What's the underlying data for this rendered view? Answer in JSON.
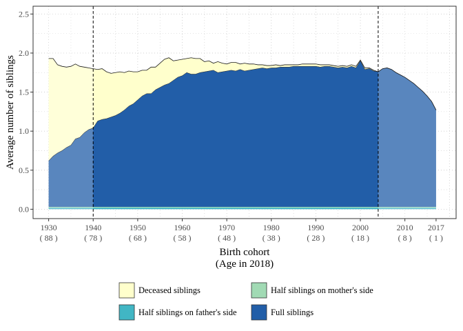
{
  "chart_data": {
    "type": "area",
    "title": "",
    "xlabel": "Birth cohort",
    "xlabel_sub": "(Age in 2018)",
    "ylabel": "Average number of siblings",
    "xlim": [
      1926.5,
      2021.5
    ],
    "ylim": [
      -0.12,
      2.6
    ],
    "grid": true,
    "legend_position": "bottom",
    "x_ticks": [
      {
        "value": 1930,
        "label": "1930",
        "sublabel": "( 88 )"
      },
      {
        "value": 1940,
        "label": "1940",
        "sublabel": "( 78 )"
      },
      {
        "value": 1950,
        "label": "1950",
        "sublabel": "( 68 )"
      },
      {
        "value": 1960,
        "label": "1960",
        "sublabel": "( 58 )"
      },
      {
        "value": 1970,
        "label": "1970",
        "sublabel": "( 48 )"
      },
      {
        "value": 1980,
        "label": "1980",
        "sublabel": "( 38 )"
      },
      {
        "value": 1990,
        "label": "1990",
        "sublabel": "( 28 )"
      },
      {
        "value": 2000,
        "label": "2000",
        "sublabel": "( 18 )"
      },
      {
        "value": 2010,
        "label": "2010",
        "sublabel": "( 8 )"
      },
      {
        "value": 2017,
        "label": "2017",
        "sublabel": "( 1 )"
      }
    ],
    "y_ticks": [
      {
        "value": 0.0,
        "label": "0.0"
      },
      {
        "value": 0.5,
        "label": "0.5"
      },
      {
        "value": 1.0,
        "label": "1.0"
      },
      {
        "value": 1.5,
        "label": "1.5"
      },
      {
        "value": 2.0,
        "label": "2.0"
      },
      {
        "value": 2.5,
        "label": "2.5"
      }
    ],
    "vlines": [
      1940,
      2004
    ],
    "shaded_ranges": [
      [
        1930,
        1940
      ],
      [
        2004,
        2017
      ]
    ],
    "x": [
      1930,
      1931,
      1932,
      1933,
      1934,
      1935,
      1936,
      1937,
      1938,
      1939,
      1940,
      1941,
      1942,
      1943,
      1944,
      1945,
      1946,
      1947,
      1948,
      1949,
      1950,
      1951,
      1952,
      1953,
      1954,
      1955,
      1956,
      1957,
      1958,
      1959,
      1960,
      1961,
      1962,
      1963,
      1964,
      1965,
      1966,
      1967,
      1968,
      1969,
      1970,
      1971,
      1972,
      1973,
      1974,
      1975,
      1976,
      1977,
      1978,
      1979,
      1980,
      1981,
      1982,
      1983,
      1984,
      1985,
      1986,
      1987,
      1988,
      1989,
      1990,
      1991,
      1992,
      1993,
      1994,
      1995,
      1996,
      1997,
      1998,
      1999,
      2000,
      2001,
      2002,
      2003,
      2004,
      2005,
      2006,
      2007,
      2008,
      2009,
      2010,
      2011,
      2012,
      2013,
      2014,
      2015,
      2016,
      2017
    ],
    "series": [
      {
        "name": "Half siblings on father's side",
        "color": "#41b6c4",
        "values": [
          0.02,
          0.02,
          0.02,
          0.02,
          0.02,
          0.02,
          0.02,
          0.02,
          0.02,
          0.02,
          0.02,
          0.02,
          0.02,
          0.02,
          0.02,
          0.02,
          0.02,
          0.02,
          0.02,
          0.02,
          0.02,
          0.02,
          0.02,
          0.02,
          0.02,
          0.02,
          0.02,
          0.02,
          0.02,
          0.02,
          0.02,
          0.02,
          0.02,
          0.02,
          0.02,
          0.02,
          0.02,
          0.02,
          0.02,
          0.02,
          0.02,
          0.02,
          0.02,
          0.02,
          0.02,
          0.02,
          0.02,
          0.02,
          0.02,
          0.02,
          0.02,
          0.02,
          0.02,
          0.02,
          0.02,
          0.02,
          0.02,
          0.02,
          0.02,
          0.02,
          0.02,
          0.02,
          0.02,
          0.02,
          0.02,
          0.02,
          0.02,
          0.02,
          0.02,
          0.02,
          0.02,
          0.02,
          0.02,
          0.02,
          0.02,
          0.02,
          0.02,
          0.02,
          0.02,
          0.02,
          0.02,
          0.02,
          0.02,
          0.02,
          0.02,
          0.02,
          0.02,
          0.02
        ]
      },
      {
        "name": "Half siblings on mother's side",
        "color": "#a1dab4",
        "values": [
          0.01,
          0.01,
          0.01,
          0.01,
          0.01,
          0.01,
          0.01,
          0.01,
          0.01,
          0.01,
          0.01,
          0.01,
          0.01,
          0.01,
          0.01,
          0.01,
          0.01,
          0.01,
          0.01,
          0.01,
          0.01,
          0.01,
          0.01,
          0.01,
          0.01,
          0.01,
          0.01,
          0.01,
          0.01,
          0.01,
          0.01,
          0.01,
          0.01,
          0.01,
          0.01,
          0.01,
          0.01,
          0.01,
          0.01,
          0.01,
          0.01,
          0.01,
          0.01,
          0.01,
          0.01,
          0.01,
          0.01,
          0.01,
          0.01,
          0.01,
          0.01,
          0.01,
          0.01,
          0.01,
          0.01,
          0.01,
          0.01,
          0.01,
          0.01,
          0.01,
          0.01,
          0.01,
          0.01,
          0.01,
          0.01,
          0.01,
          0.01,
          0.01,
          0.01,
          0.01,
          0.01,
          0.01,
          0.01,
          0.01,
          0.01,
          0.01,
          0.01,
          0.01,
          0.01,
          0.01,
          0.01,
          0.01,
          0.01,
          0.01,
          0.01,
          0.01,
          0.01,
          0.01
        ]
      },
      {
        "name": "Full siblings",
        "color": "#225ea8",
        "values": [
          0.59,
          0.65,
          0.69,
          0.72,
          0.76,
          0.79,
          0.87,
          0.89,
          0.95,
          0.99,
          1.01,
          1.1,
          1.12,
          1.13,
          1.15,
          1.17,
          1.2,
          1.24,
          1.29,
          1.32,
          1.37,
          1.42,
          1.45,
          1.45,
          1.5,
          1.53,
          1.56,
          1.58,
          1.62,
          1.66,
          1.68,
          1.72,
          1.7,
          1.7,
          1.72,
          1.73,
          1.74,
          1.75,
          1.72,
          1.73,
          1.74,
          1.75,
          1.74,
          1.76,
          1.74,
          1.75,
          1.76,
          1.77,
          1.78,
          1.77,
          1.78,
          1.78,
          1.79,
          1.79,
          1.79,
          1.8,
          1.8,
          1.8,
          1.8,
          1.8,
          1.8,
          1.79,
          1.8,
          1.8,
          1.79,
          1.78,
          1.79,
          1.78,
          1.8,
          1.78,
          1.87,
          1.76,
          1.77,
          1.74,
          1.73,
          1.77,
          1.78,
          1.76,
          1.72,
          1.69,
          1.66,
          1.62,
          1.58,
          1.53,
          1.48,
          1.42,
          1.35,
          1.24
        ]
      },
      {
        "name": "Deceased siblings",
        "color": "#ffffcc",
        "values": [
          1.31,
          1.25,
          1.13,
          1.08,
          1.03,
          1.01,
          0.96,
          0.91,
          0.84,
          0.79,
          0.76,
          0.66,
          0.65,
          0.6,
          0.56,
          0.55,
          0.53,
          0.48,
          0.45,
          0.41,
          0.36,
          0.33,
          0.3,
          0.34,
          0.29,
          0.31,
          0.33,
          0.33,
          0.25,
          0.22,
          0.21,
          0.18,
          0.21,
          0.2,
          0.18,
          0.13,
          0.13,
          0.09,
          0.14,
          0.11,
          0.09,
          0.1,
          0.11,
          0.07,
          0.1,
          0.08,
          0.07,
          0.05,
          0.04,
          0.04,
          0.03,
          0.04,
          0.02,
          0.03,
          0.03,
          0.02,
          0.02,
          0.03,
          0.03,
          0.03,
          0.03,
          0.03,
          0.02,
          0.02,
          0.02,
          0.02,
          0.02,
          0.02,
          0.02,
          0.02,
          0.01,
          0.02,
          0.01,
          0.01,
          0.0,
          0.0,
          0.0,
          0.0,
          0.0,
          0.0,
          0.0,
          0.0,
          0.0,
          0.0,
          0.0,
          0.0,
          0.0,
          0.0
        ]
      }
    ],
    "legend": {
      "items": [
        {
          "label": "Deceased siblings",
          "color": "#ffffcc"
        },
        {
          "label": "Half siblings on mother's side",
          "color": "#a1dab4"
        },
        {
          "label": "Half siblings on father's side",
          "color": "#41b6c4"
        },
        {
          "label": "Full siblings",
          "color": "#225ea8"
        }
      ]
    }
  }
}
